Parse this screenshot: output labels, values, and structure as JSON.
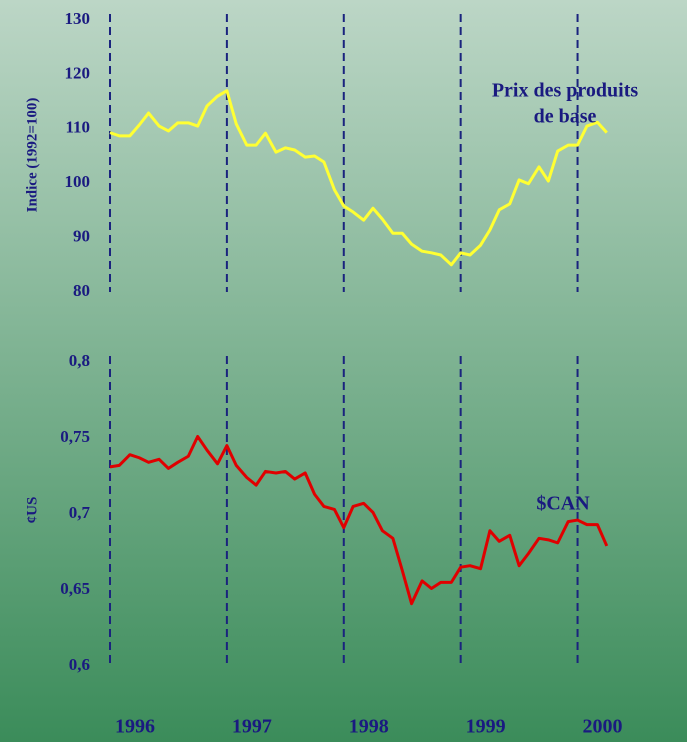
{
  "chart_data": [
    {
      "type": "line",
      "y_label": "Indice (1992=100)",
      "annotation": [
        "Prix des produits",
        "de base"
      ],
      "x": [
        1996,
        1996.08,
        1996.17,
        1996.25,
        1996.33,
        1996.42,
        1996.5,
        1996.58,
        1996.67,
        1996.75,
        1996.83,
        1996.92,
        1997,
        1997.08,
        1997.17,
        1997.25,
        1997.33,
        1997.42,
        1997.5,
        1997.58,
        1997.67,
        1997.75,
        1997.83,
        1997.92,
        1998,
        1998.08,
        1998.17,
        1998.25,
        1998.33,
        1998.42,
        1998.5,
        1998.58,
        1998.67,
        1998.75,
        1998.83,
        1998.92,
        1999,
        1999.08,
        1999.17,
        1999.25,
        1999.33,
        1999.42,
        1999.5,
        1999.58,
        1999.67,
        1999.75,
        1999.83,
        1999.92,
        2000,
        2000.08,
        2000.17,
        2000.25
      ],
      "series": [
        {
          "color": "#ffff33",
          "values": [
            109.3,
            108.7,
            108.7,
            110.7,
            112.9,
            110.5,
            109.6,
            111.1,
            111.1,
            110.5,
            114.2,
            116,
            117,
            110.9,
            107,
            107,
            109.2,
            105.7,
            106.5,
            106.1,
            104.8,
            105,
            103.9,
            98.8,
            95.8,
            94.7,
            93.2,
            95.4,
            93.4,
            90.8,
            90.8,
            88.8,
            87.5,
            87.2,
            86.8,
            85,
            87.2,
            86.8,
            88.6,
            91.4,
            95.1,
            96.2,
            100.6,
            99.9,
            103,
            100.4,
            105.9,
            107,
            107,
            110.5,
            111.2,
            109.3
          ]
        }
      ],
      "xlim": [
        1996,
        2000.5
      ],
      "xticks": [
        1996,
        1997,
        1998,
        1999,
        2000
      ],
      "ylim": [
        80,
        130
      ],
      "yticks": [
        80,
        90,
        100,
        110,
        120,
        130
      ]
    },
    {
      "type": "line",
      "y_label": "¢US",
      "annotation": [
        "$CAN"
      ],
      "x": [
        1996,
        1996.08,
        1996.17,
        1996.25,
        1996.33,
        1996.42,
        1996.5,
        1996.58,
        1996.67,
        1996.75,
        1996.83,
        1996.92,
        1997,
        1997.08,
        1997.17,
        1997.25,
        1997.33,
        1997.42,
        1997.5,
        1997.58,
        1997.67,
        1997.75,
        1997.83,
        1997.92,
        1998,
        1998.08,
        1998.17,
        1998.25,
        1998.33,
        1998.42,
        1998.5,
        1998.58,
        1998.67,
        1998.75,
        1998.83,
        1998.92,
        1999,
        1999.08,
        1999.17,
        1999.25,
        1999.33,
        1999.42,
        1999.5,
        1999.58,
        1999.67,
        1999.75,
        1999.83,
        1999.92,
        2000,
        2000.08,
        2000.17,
        2000.25
      ],
      "series": [
        {
          "color": "#e00000",
          "values": [
            0.731,
            0.732,
            0.739,
            0.737,
            0.734,
            0.736,
            0.73,
            0.734,
            0.738,
            0.751,
            0.742,
            0.733,
            0.745,
            0.732,
            0.724,
            0.719,
            0.728,
            0.727,
            0.728,
            0.723,
            0.727,
            0.713,
            0.705,
            0.703,
            0.691,
            0.705,
            0.707,
            0.701,
            0.689,
            0.684,
            0.663,
            0.641,
            0.656,
            0.651,
            0.655,
            0.655,
            0.665,
            0.666,
            0.664,
            0.689,
            0.682,
            0.686,
            0.666,
            0.674,
            0.684,
            0.683,
            0.681,
            0.695,
            0.696,
            0.693,
            0.693,
            0.679
          ]
        }
      ],
      "xlim": [
        1996,
        2000.5
      ],
      "xticks": [
        1996,
        1997,
        1998,
        1999,
        2000
      ],
      "ylim": [
        0.6,
        0.8
      ],
      "yticks": [
        {
          "value": 0.6,
          "label": "0,6"
        },
        {
          "value": 0.65,
          "label": "0,65"
        },
        {
          "value": 0.7,
          "label": "0,7"
        },
        {
          "value": 0.75,
          "label": "0,75"
        },
        {
          "value": 0.8,
          "label": "0,8"
        }
      ]
    }
  ]
}
